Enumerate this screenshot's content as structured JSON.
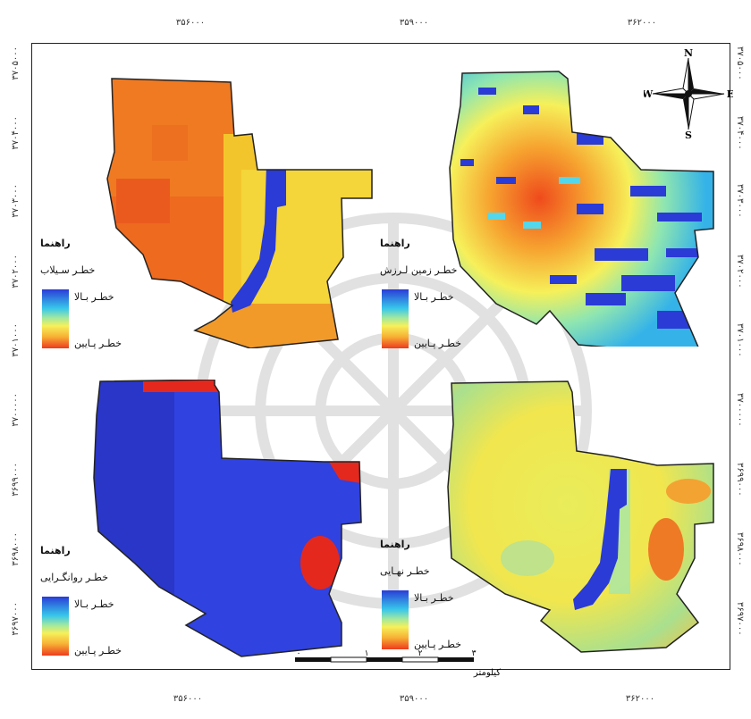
{
  "axes": {
    "x_ticks": [
      "۳۵۶۰۰۰",
      "۳۵۹۰۰۰",
      "۳۶۲۰۰۰"
    ],
    "y_ticks": [
      "۳۷۰۵۰۰۰",
      "۳۷۰۴۰۰۰",
      "۳۷۰۳۰۰۰",
      "۳۷۰۲۰۰۰",
      "۳۷۰۱۰۰۰",
      "۳۷۰۰۰۰۰",
      "۳۶۹۹۰۰۰",
      "۳۶۹۸۰۰۰",
      "۳۶۹۷۰۰۰"
    ]
  },
  "panels": [
    {
      "id": "flood",
      "legend_title": "راهنما",
      "layer": "خطـر سـیلاب",
      "high": "خطـر بـالا",
      "low": "خطـر پـایین"
    },
    {
      "id": "earthquake",
      "legend_title": "راهنما",
      "layer": "خطـر زمین لـرزش",
      "high": "خطـر بـالا",
      "low": "خطـر پـایین"
    },
    {
      "id": "liquefaction",
      "legend_title": "راهنما",
      "layer": "خطـر روانگـرایی",
      "high": "خطـر بـالا",
      "low": "خطـر پـایین"
    },
    {
      "id": "final",
      "legend_title": "راهنما",
      "layer": "خطـر نهـایی",
      "high": "خطـر بـالا",
      "low": "خطـر پـایین"
    }
  ],
  "north_arrow": {
    "n": "N",
    "s": "S",
    "e": "E",
    "w": "W"
  },
  "scale": {
    "labels": [
      "۰",
      "۱",
      "۲",
      "۳"
    ],
    "unit": "کیلومتر"
  },
  "colors": {
    "high": "#2a3bd6",
    "low": "#ee3b1e",
    "boundary": "#222222",
    "mid": "#f6f05a"
  }
}
